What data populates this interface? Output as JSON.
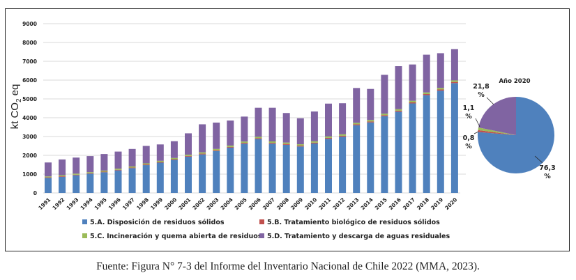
{
  "caption": "Fuente: Figura N° 7-3 del Informe del Inventario Nacional de Chile 2022 (MMA, 2023).",
  "chart_data": [
    {
      "type": "bar",
      "stacked": true,
      "title": "",
      "xlabel": "",
      "ylabel": "kt CO2 eq",
      "ylabel_parts": {
        "pre": "kt CO",
        "sub": "2",
        "post": " eq"
      },
      "ylim": [
        0,
        9000
      ],
      "yticks": [
        0,
        1000,
        2000,
        3000,
        4000,
        5000,
        6000,
        7000,
        8000,
        9000
      ],
      "grid": true,
      "legend_position": "bottom",
      "categories": [
        "1991",
        "1992",
        "1993",
        "1994",
        "1995",
        "1996",
        "1997",
        "1998",
        "1999",
        "2000",
        "2001",
        "2002",
        "2003",
        "2004",
        "2005",
        "2006",
        "2007",
        "2008",
        "2009",
        "2010",
        "2011",
        "2012",
        "2013",
        "2014",
        "2015",
        "2016",
        "2017",
        "2018",
        "2019",
        "2020"
      ],
      "series": [
        {
          "name": "5.A. Disposición de residuos sólidos",
          "color": "#4F81BD",
          "values": [
            800,
            860,
            940,
            1020,
            1100,
            1200,
            1320,
            1480,
            1610,
            1760,
            1930,
            2050,
            2230,
            2410,
            2620,
            2870,
            2620,
            2560,
            2470,
            2630,
            2880,
            2990,
            3600,
            3750,
            4080,
            4320,
            4760,
            5200,
            5440,
            5840
          ]
        },
        {
          "name": "5.B. Tratamiento biológico de residuos sólidos",
          "color": "#C0504D",
          "values": [
            30,
            30,
            30,
            30,
            30,
            30,
            30,
            35,
            35,
            35,
            40,
            40,
            40,
            40,
            45,
            45,
            45,
            45,
            45,
            45,
            50,
            50,
            50,
            50,
            55,
            55,
            55,
            60,
            60,
            60
          ]
        },
        {
          "name": "5.C. Incineración y quema abierta de residuos",
          "color": "#9BBB59",
          "values": [
            50,
            55,
            55,
            55,
            60,
            60,
            60,
            60,
            65,
            65,
            65,
            70,
            70,
            70,
            70,
            70,
            75,
            75,
            75,
            75,
            75,
            80,
            80,
            80,
            80,
            80,
            85,
            85,
            85,
            85
          ]
        },
        {
          "name": "5.D. Tratamiento y descarga de aguas residuales",
          "color": "#8064A2",
          "values": [
            740,
            835,
            855,
            855,
            880,
            910,
            930,
            925,
            870,
            890,
            1135,
            1490,
            1400,
            1330,
            1325,
            1545,
            1790,
            1570,
            1380,
            1580,
            1745,
            1650,
            1850,
            1650,
            2065,
            2285,
            1930,
            2005,
            1845,
            1665
          ]
        }
      ]
    },
    {
      "type": "pie",
      "title": "Año 2020",
      "slices": [
        {
          "name": "5.A. Disposición de residuos sólidos",
          "value": 76.3,
          "label": "76,3 %",
          "color": "#4F81BD"
        },
        {
          "name": "5.B. Tratamiento biológico de residuos sólidos",
          "value": 0.8,
          "label": "0,8 %",
          "color": "#C0504D"
        },
        {
          "name": "5.C. Incineración y quema abierta de residuos",
          "value": 1.1,
          "label": "1,1 %",
          "color": "#9BBB59"
        },
        {
          "name": "5.D. Tratamiento y descarga de aguas residuales",
          "value": 21.8,
          "label": "21,8 %",
          "color": "#8064A2"
        }
      ]
    }
  ]
}
